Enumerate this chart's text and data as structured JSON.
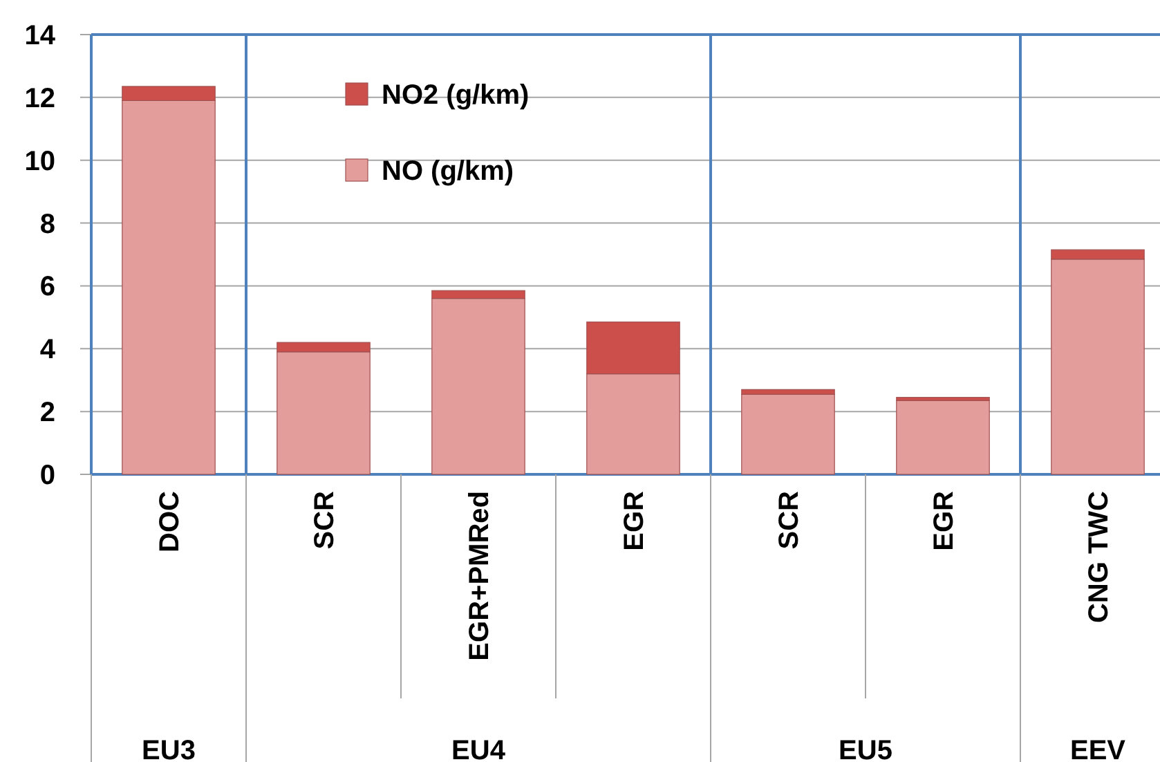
{
  "chart_data": {
    "type": "bar",
    "stacked": true,
    "categories": [
      "DOC",
      "SCR",
      "EGR+PMRed",
      "EGR",
      "SCR",
      "EGR",
      "CNG TWC"
    ],
    "series": [
      {
        "name": "NO (g/km)",
        "color": "#e39d9b",
        "values": [
          11.9,
          3.9,
          5.6,
          3.2,
          2.55,
          2.35,
          6.85
        ]
      },
      {
        "name": "NO2 (g/km)",
        "color": "#cc4f4c",
        "values": [
          0.45,
          0.3,
          0.25,
          1.65,
          0.15,
          0.1,
          0.3
        ]
      }
    ],
    "annotations": [
      "EU3",
      "EU4",
      "EU5",
      "EEV"
    ],
    "ylim": [
      0,
      14
    ],
    "yticks": [
      0,
      2,
      4,
      6,
      8,
      10,
      12,
      14
    ],
    "grid": "y",
    "legend": "top"
  }
}
